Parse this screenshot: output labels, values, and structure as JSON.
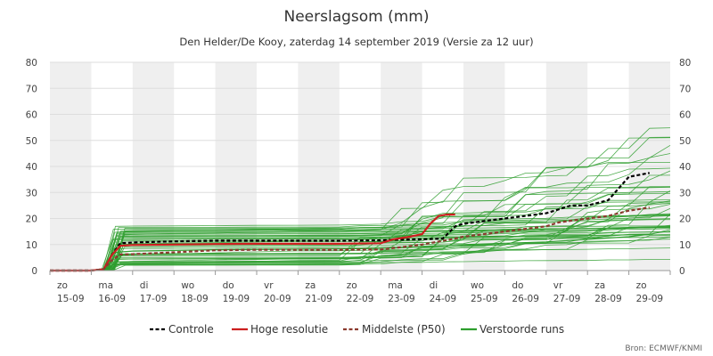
{
  "chart_data": {
    "type": "line",
    "title": "Neerslagsom (mm)",
    "subtitle": "Den Helder/De Kooy, zaterdag 14 september 2019 (Versie za 12 uur)",
    "credit": "Bron: ECMWF/KNMI",
    "xlabel": "",
    "ylabel": "",
    "ylim": [
      0,
      80
    ],
    "yticks": [
      0,
      10,
      20,
      30,
      40,
      50,
      60,
      70,
      80
    ],
    "xlim": [
      0,
      15
    ],
    "grid": "horizontal",
    "legend_position": "bottom",
    "x_day_labels": [
      {
        "day": "zo",
        "date": "15-09"
      },
      {
        "day": "ma",
        "date": "16-09"
      },
      {
        "day": "di",
        "date": "17-09"
      },
      {
        "day": "wo",
        "date": "18-09"
      },
      {
        "day": "do",
        "date": "19-09"
      },
      {
        "day": "vr",
        "date": "20-09"
      },
      {
        "day": "za",
        "date": "21-09"
      },
      {
        "day": "zo",
        "date": "22-09"
      },
      {
        "day": "ma",
        "date": "23-09"
      },
      {
        "day": "di",
        "date": "24-09"
      },
      {
        "day": "wo",
        "date": "25-09"
      },
      {
        "day": "do",
        "date": "26-09"
      },
      {
        "day": "vr",
        "date": "27-09"
      },
      {
        "day": "za",
        "date": "28-09"
      },
      {
        "day": "zo",
        "date": "29-09"
      }
    ],
    "series": [
      {
        "name": "Controle",
        "color": "#000000",
        "style": "dashed",
        "points": [
          [
            0,
            0
          ],
          [
            1,
            0
          ],
          [
            1.3,
            0.5
          ],
          [
            1.5,
            6
          ],
          [
            1.7,
            10.5
          ],
          [
            2,
            10.8
          ],
          [
            3,
            11.2
          ],
          [
            4,
            11.5
          ],
          [
            5,
            11.5
          ],
          [
            6,
            11.5
          ],
          [
            7,
            11.5
          ],
          [
            8,
            11.6
          ],
          [
            8.2,
            11.8
          ],
          [
            9,
            12
          ],
          [
            9.5,
            12.3
          ],
          [
            9.8,
            17
          ],
          [
            10,
            18
          ],
          [
            11,
            20
          ],
          [
            12,
            22
          ],
          [
            12.3,
            23.5
          ],
          [
            12.6,
            25
          ],
          [
            13,
            25
          ],
          [
            13.5,
            27
          ],
          [
            14,
            36
          ],
          [
            14.5,
            37.5
          ]
        ]
      },
      {
        "name": "Hoge resolutie",
        "color": "#cc1f1f",
        "style": "solid",
        "points": [
          [
            0,
            0
          ],
          [
            1,
            0
          ],
          [
            1.3,
            0.5
          ],
          [
            1.5,
            6
          ],
          [
            1.7,
            9.5
          ],
          [
            2,
            9.8
          ],
          [
            3,
            10
          ],
          [
            4,
            10.2
          ],
          [
            5,
            10.3
          ],
          [
            6,
            10.3
          ],
          [
            7,
            10.3
          ],
          [
            8,
            10.5
          ],
          [
            8.3,
            12
          ],
          [
            8.7,
            13
          ],
          [
            9,
            14
          ],
          [
            9.2,
            18
          ],
          [
            9.4,
            21
          ],
          [
            9.6,
            21.5
          ],
          [
            9.8,
            21.5
          ]
        ]
      },
      {
        "name": "Middelste (P50)",
        "color": "#8b3a2e",
        "style": "dashed",
        "points": [
          [
            0,
            0
          ],
          [
            1,
            0
          ],
          [
            1.3,
            0.5
          ],
          [
            1.5,
            4
          ],
          [
            1.7,
            6.2
          ],
          [
            2,
            6.3
          ],
          [
            3,
            7
          ],
          [
            4,
            7.8
          ],
          [
            5,
            8
          ],
          [
            6,
            8
          ],
          [
            7,
            8
          ],
          [
            8,
            8.1
          ],
          [
            8.5,
            9
          ],
          [
            9,
            10
          ],
          [
            9.7,
            12
          ],
          [
            10,
            13
          ],
          [
            11,
            15
          ],
          [
            12,
            17
          ],
          [
            12.3,
            18.5
          ],
          [
            13,
            20
          ],
          [
            13.5,
            21
          ],
          [
            14,
            23
          ],
          [
            14.5,
            24.2
          ]
        ]
      },
      {
        "name": "Verstoorde runs",
        "color": "#2e9e2e",
        "style": "solid",
        "points": [
          [
            0,
            0
          ],
          [
            1,
            0
          ],
          [
            1.4,
            1
          ],
          [
            1.6,
            7
          ],
          [
            2,
            7.5
          ],
          [
            4,
            8
          ],
          [
            7,
            8.3
          ],
          [
            8,
            8.5
          ],
          [
            9,
            9
          ],
          [
            10,
            10
          ],
          [
            12,
            11
          ],
          [
            13,
            12
          ],
          [
            14,
            13
          ],
          [
            14.5,
            14
          ]
        ]
      }
    ]
  },
  "legend": {
    "items": [
      {
        "label": "Controle"
      },
      {
        "label": "Hoge resolutie"
      },
      {
        "label": "Middelste (P50)"
      },
      {
        "label": "Verstoorde runs"
      }
    ]
  }
}
